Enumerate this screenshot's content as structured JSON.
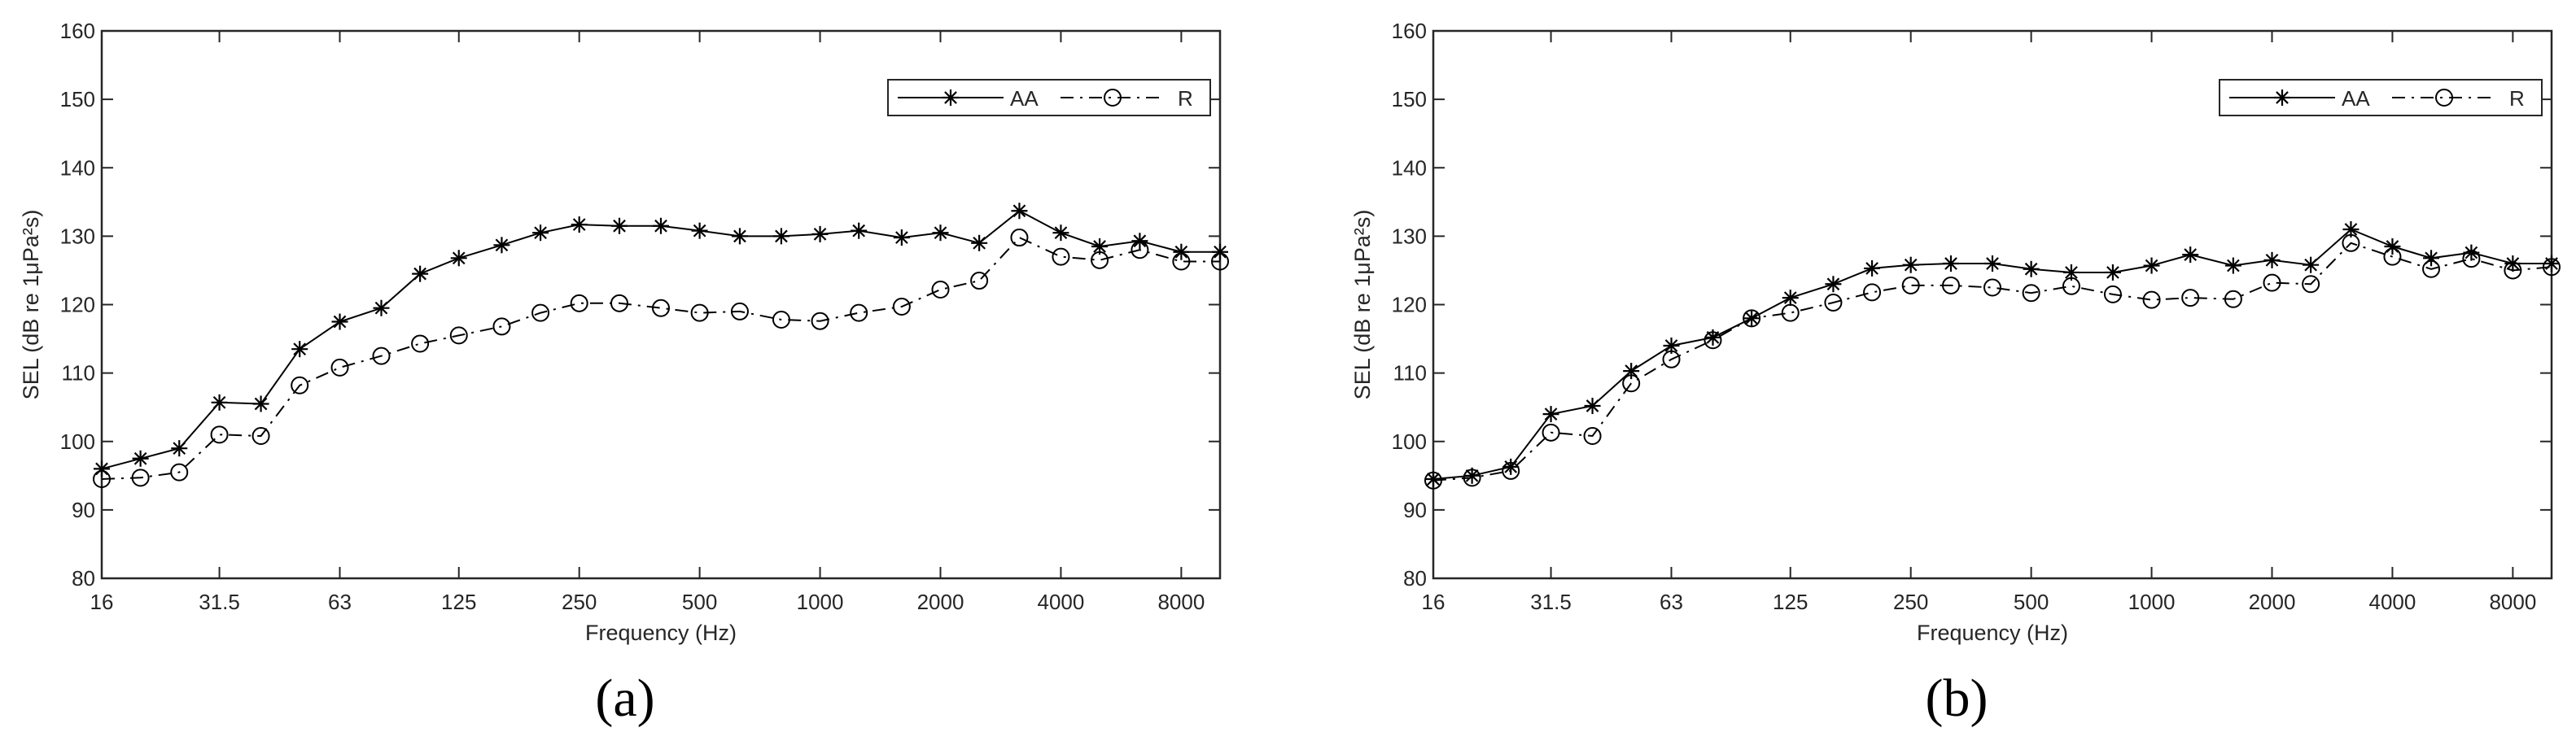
{
  "chart_data": [
    {
      "type": "line",
      "panel_label": "(a)",
      "xlabel": "Frequency (Hz)",
      "ylabel": "SEL (dB re 1μPa²s)",
      "xscale": "log",
      "xlim": [
        16,
        10000
      ],
      "ylim": [
        80,
        160
      ],
      "x_ticks": [
        16,
        31.5,
        63,
        125,
        250,
        500,
        1000,
        2000,
        4000,
        8000
      ],
      "x_tick_labels": [
        "16",
        "31.5",
        "63",
        "125",
        "250",
        "500",
        "1000",
        "2000",
        "4000",
        "8000"
      ],
      "y_ticks": [
        80,
        90,
        100,
        110,
        120,
        130,
        140,
        150,
        160
      ],
      "y_tick_labels": [
        "80",
        "90",
        "100",
        "110",
        "120",
        "130",
        "140",
        "150",
        "160"
      ],
      "grid": false,
      "legend_position": "top-right",
      "x": [
        16,
        20,
        25,
        31.5,
        40,
        50,
        63,
        80,
        100,
        125,
        160,
        200,
        250,
        315,
        400,
        500,
        630,
        800,
        1000,
        1250,
        1600,
        2000,
        2500,
        3150,
        4000,
        5000,
        6300,
        8000,
        10000
      ],
      "series": [
        {
          "name": "AA",
          "marker": "asterisk",
          "line": "solid",
          "values": [
            96,
            97.5,
            99,
            105.7,
            105.5,
            113.5,
            117.5,
            119.5,
            124.5,
            126.8,
            128.7,
            130.5,
            131.7,
            131.5,
            131.5,
            130.8,
            130,
            130,
            130.3,
            130.8,
            129.8,
            130.5,
            129,
            133.7,
            130.5,
            128.5,
            129.3,
            127.7,
            127.7
          ]
        },
        {
          "name": "R",
          "marker": "circle",
          "line": "dash-dot",
          "values": [
            94.5,
            94.7,
            95.5,
            101,
            100.8,
            108.2,
            110.8,
            112.5,
            114.3,
            115.5,
            116.8,
            118.8,
            120.2,
            120.2,
            119.5,
            118.8,
            119,
            117.8,
            117.6,
            118.8,
            119.7,
            122.2,
            123.5,
            129.8,
            127,
            126.5,
            128,
            126.3,
            126.3
          ]
        }
      ]
    },
    {
      "type": "line",
      "panel_label": "(b)",
      "xlabel": "Frequency (Hz)",
      "ylabel": "SEL (dB re 1μPa²s)",
      "xscale": "log",
      "xlim": [
        16,
        10000
      ],
      "ylim": [
        80,
        160
      ],
      "x_ticks": [
        16,
        31.5,
        63,
        125,
        250,
        500,
        1000,
        2000,
        4000,
        8000
      ],
      "x_tick_labels": [
        "16",
        "31.5",
        "63",
        "125",
        "250",
        "500",
        "1000",
        "2000",
        "4000",
        "8000"
      ],
      "y_ticks": [
        80,
        90,
        100,
        110,
        120,
        130,
        140,
        150,
        160
      ],
      "y_tick_labels": [
        "80",
        "90",
        "100",
        "110",
        "120",
        "130",
        "140",
        "150",
        "160"
      ],
      "grid": false,
      "legend_position": "top-right",
      "x": [
        16,
        20,
        25,
        31.5,
        40,
        50,
        63,
        80,
        100,
        125,
        160,
        200,
        250,
        315,
        400,
        500,
        630,
        800,
        1000,
        1250,
        1600,
        2000,
        2500,
        3150,
        4000,
        5000,
        6300,
        8000,
        10000
      ],
      "series": [
        {
          "name": "AA",
          "marker": "asterisk",
          "line": "solid",
          "values": [
            94.5,
            95,
            96.3,
            104,
            105.2,
            110.3,
            114,
            115.2,
            118,
            121,
            123,
            125.3,
            125.8,
            126,
            126,
            125.2,
            124.7,
            124.7,
            125.7,
            127.3,
            125.7,
            126.5,
            125.8,
            131,
            128.5,
            126.8,
            127.6,
            126,
            126
          ]
        },
        {
          "name": "R",
          "marker": "circle",
          "line": "dash-dot",
          "values": [
            94.3,
            94.7,
            95.7,
            101.3,
            100.8,
            108.5,
            112,
            114.8,
            118,
            118.8,
            120.3,
            121.8,
            122.8,
            122.8,
            122.5,
            121.7,
            122.7,
            121.5,
            120.7,
            121,
            120.8,
            123.2,
            123,
            129,
            127,
            125.2,
            126.7,
            125,
            125.5
          ]
        }
      ]
    }
  ]
}
